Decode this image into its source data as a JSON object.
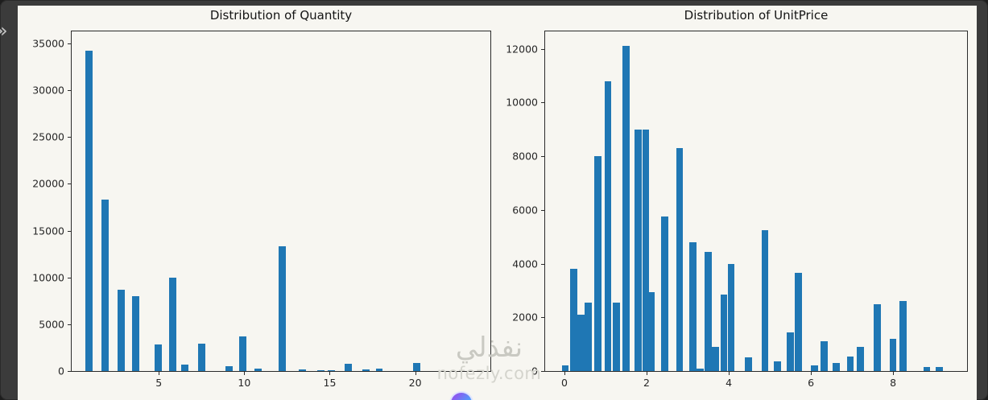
{
  "window": {
    "chevron_icon": "»"
  },
  "watermark": {
    "arabic": "نفذلي",
    "latin": "nofezly.com"
  },
  "chart_data": [
    {
      "type": "bar",
      "title": "Distribution of Quantity",
      "xlabel": "",
      "ylabel": "",
      "x": [
        0.9,
        1.85,
        2.8,
        3.65,
        4.95,
        5.8,
        6.5,
        7.5,
        9.1,
        9.9,
        10.8,
        12.2,
        13.4,
        14.5,
        15.1,
        16.1,
        17.1,
        17.9,
        20.1
      ],
      "values": [
        34200,
        18300,
        8700,
        8000,
        2800,
        10000,
        700,
        2900,
        500,
        3700,
        250,
        13300,
        150,
        100,
        80,
        750,
        200,
        300,
        900
      ],
      "bar_width": 0.42,
      "xlim": [
        -0.1,
        24.4
      ],
      "ylim": [
        0,
        36300
      ],
      "xticks": [
        5,
        10,
        15,
        20
      ],
      "yticks": [
        0,
        5000,
        10000,
        15000,
        20000,
        25000,
        30000,
        35000
      ],
      "bar_color": "#1f77b4",
      "grid": false,
      "legend": "none"
    },
    {
      "type": "bar",
      "title": "Distribution of UnitPrice",
      "xlabel": "",
      "ylabel": "",
      "x": [
        0.02,
        0.22,
        0.4,
        0.58,
        0.82,
        1.06,
        1.26,
        1.5,
        1.8,
        1.98,
        2.12,
        2.44,
        2.8,
        3.12,
        3.3,
        3.5,
        3.68,
        3.88,
        4.06,
        4.48,
        4.88,
        5.18,
        5.5,
        5.7,
        6.08,
        6.32,
        6.62,
        6.96,
        7.2,
        7.62,
        8.0,
        8.24,
        8.82,
        9.12
      ],
      "values": [
        200,
        3800,
        2100,
        2550,
        8000,
        10800,
        2550,
        12100,
        9000,
        9000,
        2950,
        5750,
        8300,
        4800,
        100,
        4450,
        900,
        2850,
        4000,
        500,
        5250,
        350,
        1450,
        3650,
        200,
        1100,
        300,
        550,
        900,
        2500,
        1200,
        2600,
        150,
        150
      ],
      "bar_width": 0.17,
      "xlim": [
        -0.47,
        9.8
      ],
      "ylim": [
        0,
        12650
      ],
      "xticks": [
        0,
        2,
        4,
        6,
        8
      ],
      "yticks": [
        0,
        2000,
        4000,
        6000,
        8000,
        10000,
        12000
      ],
      "bar_color": "#1f77b4",
      "grid": false,
      "legend": "none"
    }
  ]
}
